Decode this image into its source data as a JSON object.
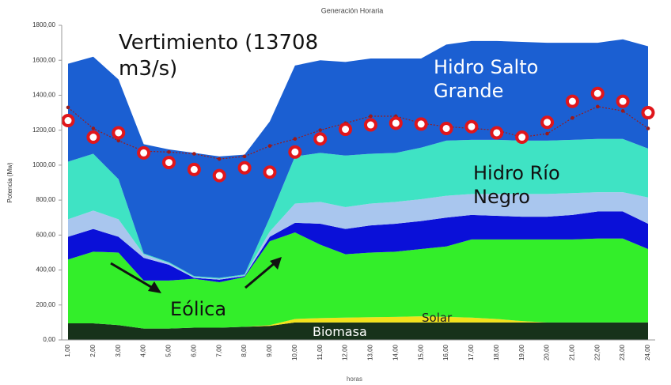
{
  "chart_data": {
    "type": "area",
    "stacked": true,
    "title": "Generación Horaria",
    "y_label": "Potencia (Mw)",
    "x_label": "horas",
    "categories": [
      "1,00",
      "2,00",
      "3,00",
      "4,00",
      "5,00",
      "6,00",
      "7,00",
      "8,00",
      "9,00",
      "10,00",
      "11,00",
      "12,00",
      "13,00",
      "14,00",
      "15,00",
      "16,00",
      "17,00",
      "18,00",
      "19,00",
      "20,00",
      "21,00",
      "22,00",
      "23,00",
      "24,00"
    ],
    "ylim": [
      0,
      1800
    ],
    "yticks": [
      {
        "value": 0,
        "label": "0,00"
      },
      {
        "value": 200,
        "label": "200,00"
      },
      {
        "value": 400,
        "label": "400,00"
      },
      {
        "value": 600,
        "label": "600,00"
      },
      {
        "value": 800,
        "label": "800,00"
      },
      {
        "value": 1000,
        "label": "1000,00"
      },
      {
        "value": 1200,
        "label": "1200,00"
      },
      {
        "value": 1400,
        "label": "1400,00"
      },
      {
        "value": 1600,
        "label": "1600,00"
      },
      {
        "value": 1800,
        "label": "1800,00"
      }
    ],
    "series": [
      {
        "name": "Biomasa",
        "color": "#17321a",
        "values": [
          95,
          95,
          85,
          65,
          65,
          70,
          70,
          75,
          80,
          100,
          100,
          100,
          100,
          100,
          100,
          100,
          100,
          100,
          100,
          100,
          100,
          100,
          100,
          100
        ]
      },
      {
        "name": "Solar",
        "color": "#f2e21a",
        "values": [
          0,
          0,
          0,
          0,
          0,
          0,
          0,
          0,
          5,
          20,
          25,
          28,
          30,
          32,
          35,
          32,
          28,
          20,
          8,
          0,
          0,
          0,
          0,
          0
        ]
      },
      {
        "name": "Eólica",
        "color": "#33ee2a",
        "values": [
          365,
          410,
          415,
          275,
          275,
          280,
          260,
          285,
          480,
          495,
          420,
          362,
          370,
          373,
          385,
          403,
          447,
          455,
          467,
          475,
          475,
          480,
          480,
          420
        ]
      },
      {
        "color": "#0a10d8",
        "values": [
          130,
          130,
          90,
          130,
          90,
          5,
          15,
          5,
          25,
          55,
          120,
          145,
          155,
          160,
          160,
          165,
          140,
          135,
          130,
          130,
          140,
          155,
          155,
          145
        ]
      },
      {
        "color": "#a9c6ee",
        "values": [
          100,
          105,
          100,
          20,
          10,
          5,
          5,
          5,
          30,
          110,
          125,
          125,
          125,
          125,
          125,
          125,
          120,
          125,
          130,
          130,
          125,
          110,
          110,
          150
        ]
      },
      {
        "name": "Hidro Río Negro",
        "color": "#3fe3c4",
        "values": [
          330,
          325,
          230,
          5,
          5,
          5,
          5,
          5,
          80,
          270,
          280,
          295,
          285,
          280,
          295,
          315,
          310,
          310,
          305,
          305,
          305,
          305,
          305,
          280
        ]
      },
      {
        "name": "Hidro Salto Grande",
        "color": "#1b5fd2",
        "values": [
          560,
          555,
          570,
          625,
          645,
          705,
          695,
          685,
          550,
          520,
          530,
          535,
          545,
          540,
          510,
          550,
          565,
          565,
          565,
          560,
          555,
          550,
          570,
          585
        ]
      },
      {
        "type": "line",
        "color": "#9b1a1a",
        "values": [
          1330,
          1210,
          1140,
          1080,
          1075,
          1065,
          1035,
          1050,
          1110,
          1150,
          1200,
          1240,
          1280,
          1280,
          1240,
          1220,
          1210,
          1200,
          1160,
          1180,
          1270,
          1335,
          1310,
          1210
        ]
      },
      {
        "type": "dots",
        "color": "#e0161b",
        "values": [
          1255,
          1160,
          1185,
          1070,
          1015,
          975,
          940,
          985,
          960,
          1075,
          1150,
          1205,
          1230,
          1240,
          1235,
          1210,
          1220,
          1185,
          1160,
          1245,
          1365,
          1410,
          1365,
          1300
        ]
      }
    ],
    "annotations": [
      "Vertimiento (13708 m3/s)"
    ]
  }
}
